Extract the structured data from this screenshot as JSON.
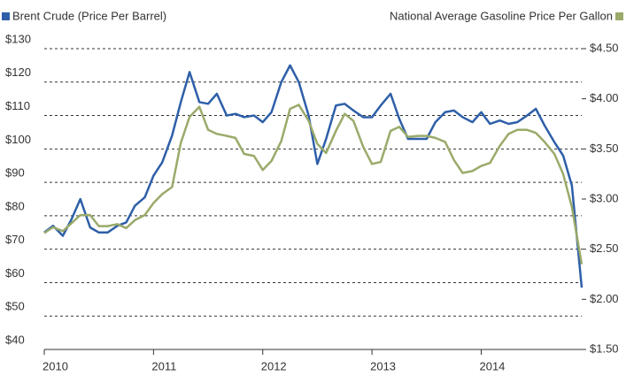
{
  "chart_data": {
    "type": "line",
    "x": [
      2010,
      2010.08,
      2010.17,
      2010.25,
      2010.33,
      2010.42,
      2010.5,
      2010.58,
      2010.67,
      2010.75,
      2010.83,
      2010.92,
      2011,
      2011.08,
      2011.17,
      2011.25,
      2011.33,
      2011.42,
      2011.5,
      2011.58,
      2011.67,
      2011.75,
      2011.83,
      2011.92,
      2012,
      2012.08,
      2012.17,
      2012.25,
      2012.33,
      2012.42,
      2012.5,
      2012.58,
      2012.67,
      2012.75,
      2012.83,
      2012.92,
      2013,
      2013.08,
      2013.17,
      2013.25,
      2013.33,
      2013.42,
      2013.5,
      2013.58,
      2013.67,
      2013.75,
      2013.83,
      2013.92,
      2014,
      2014.08,
      2014.17,
      2014.25,
      2014.33,
      2014.42,
      2014.5,
      2014.58,
      2014.67,
      2014.75,
      2014.83,
      2014.92
    ],
    "xlim": [
      2010,
      2014.92
    ],
    "xticks": [
      2010,
      2011,
      2012,
      2013,
      2014
    ],
    "series": [
      {
        "name": "Brent Crude (Price Per Barrel)",
        "color": "#2e5fa8",
        "values": [
          75,
          77,
          74,
          79,
          85,
          76.5,
          75,
          75,
          77,
          78,
          83,
          85.5,
          92,
          96,
          104,
          114,
          123,
          114,
          113.5,
          116.5,
          110,
          110.5,
          109.5,
          110,
          108,
          111,
          120,
          125,
          120,
          110,
          95.5,
          103,
          113,
          113.5,
          111.5,
          109.5,
          109.5,
          113,
          116.5,
          109,
          103,
          103,
          103,
          108,
          111,
          111.5,
          109.5,
          108,
          111,
          107.5,
          108.5,
          107.5,
          108,
          110,
          112,
          107,
          102,
          98,
          89,
          58.5
        ]
      },
      {
        "name": "National Average Gasoline Price Per Gallon",
        "color": "#9aaa6a",
        "axis": "y2",
        "values": [
          2.66,
          2.72,
          2.68,
          2.76,
          2.84,
          2.84,
          2.73,
          2.73,
          2.75,
          2.71,
          2.79,
          2.84,
          2.96,
          3.05,
          3.12,
          3.56,
          3.82,
          3.92,
          3.69,
          3.65,
          3.63,
          3.61,
          3.45,
          3.43,
          3.29,
          3.38,
          3.58,
          3.9,
          3.94,
          3.78,
          3.55,
          3.46,
          3.68,
          3.85,
          3.78,
          3.52,
          3.35,
          3.37,
          3.68,
          3.72,
          3.62,
          3.63,
          3.63,
          3.61,
          3.57,
          3.39,
          3.26,
          3.28,
          3.33,
          3.36,
          3.53,
          3.65,
          3.69,
          3.69,
          3.66,
          3.57,
          3.45,
          3.25,
          2.92,
          2.35
        ]
      }
    ],
    "ylim": [
      40,
      130
    ],
    "yticks": [
      {
        "value": 40,
        "label": "$40"
      },
      {
        "value": 50,
        "label": "$50"
      },
      {
        "value": 60,
        "label": "$60"
      },
      {
        "value": 70,
        "label": "$70"
      },
      {
        "value": 80,
        "label": "$80"
      },
      {
        "value": 90,
        "label": "$90"
      },
      {
        "value": 100,
        "label": "$100"
      },
      {
        "value": 110,
        "label": "$110"
      },
      {
        "value": 120,
        "label": "$120"
      },
      {
        "value": 130,
        "label": "$130"
      }
    ],
    "y2lim": [
      1.5,
      4.5
    ],
    "y2ticks": [
      {
        "value": 1.5,
        "label": "$1.50"
      },
      {
        "value": 2,
        "label": "$2.00"
      },
      {
        "value": 2.5,
        "label": "$2.50"
      },
      {
        "value": 3,
        "label": "$3.00"
      },
      {
        "value": 3.5,
        "label": "$3.50"
      },
      {
        "value": 4,
        "label": "$4.00"
      },
      {
        "value": 4.5,
        "label": "$4.50"
      }
    ],
    "grid": true
  }
}
